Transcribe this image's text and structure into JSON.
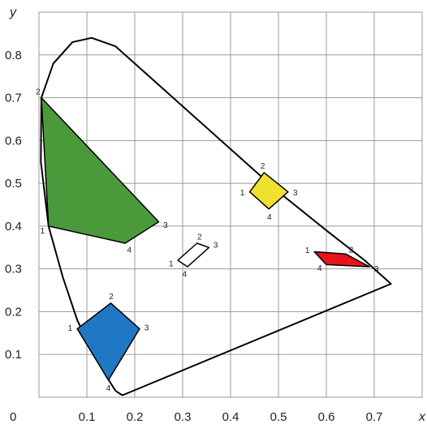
{
  "chart_data": {
    "type": "scatter",
    "title": "",
    "xlabel": "x",
    "ylabel": "y",
    "origin_label": "0",
    "xlim": [
      0,
      0.8
    ],
    "ylim": [
      0,
      0.9
    ],
    "grid": true,
    "x_ticks": [
      {
        "value": 0.1,
        "label": "0.1"
      },
      {
        "value": 0.2,
        "label": "0.2"
      },
      {
        "value": 0.3,
        "label": "0.3"
      },
      {
        "value": 0.4,
        "label": "0.4"
      },
      {
        "value": 0.5,
        "label": "0.5"
      },
      {
        "value": 0.6,
        "label": "0.6"
      },
      {
        "value": 0.7,
        "label": "0.7"
      }
    ],
    "y_ticks": [
      {
        "value": 0.1,
        "label": "0.1"
      },
      {
        "value": 0.2,
        "label": "0.2"
      },
      {
        "value": 0.3,
        "label": "0.3"
      },
      {
        "value": 0.4,
        "label": "0.4"
      },
      {
        "value": 0.5,
        "label": "0.5"
      },
      {
        "value": 0.6,
        "label": "0.6"
      },
      {
        "value": 0.7,
        "label": "0.7"
      },
      {
        "value": 0.8,
        "label": "0.8"
      }
    ],
    "spectral_locus": [
      [
        0.175,
        0.005
      ],
      [
        0.172,
        0.006
      ],
      [
        0.16,
        0.015
      ],
      [
        0.14,
        0.05
      ],
      [
        0.115,
        0.1
      ],
      [
        0.08,
        0.18
      ],
      [
        0.05,
        0.28
      ],
      [
        0.02,
        0.4
      ],
      [
        0.004,
        0.55
      ],
      [
        0.005,
        0.7
      ],
      [
        0.03,
        0.78
      ],
      [
        0.07,
        0.83
      ],
      [
        0.11,
        0.84
      ],
      [
        0.16,
        0.82
      ],
      [
        0.23,
        0.75
      ],
      [
        0.3,
        0.68
      ],
      [
        0.4,
        0.58
      ],
      [
        0.5,
        0.48
      ],
      [
        0.6,
        0.39
      ],
      [
        0.68,
        0.32
      ],
      [
        0.735,
        0.265
      ]
    ],
    "regions": [
      {
        "color": "#4a9a3c",
        "vertices": [
          {
            "label": "1",
            "x": 0.02,
            "y": 0.4
          },
          {
            "label": "2",
            "x": 0.005,
            "y": 0.7
          },
          {
            "label": "3",
            "x": 0.25,
            "y": 0.41
          },
          {
            "label": "4",
            "x": 0.18,
            "y": 0.36
          }
        ]
      },
      {
        "color": "#1f78c4",
        "vertices": [
          {
            "label": "1",
            "x": 0.08,
            "y": 0.16
          },
          {
            "label": "2",
            "x": 0.15,
            "y": 0.22
          },
          {
            "label": "3",
            "x": 0.21,
            "y": 0.16
          },
          {
            "label": "4",
            "x": 0.145,
            "y": 0.04
          }
        ]
      },
      {
        "color": "#ffffff",
        "vertices": [
          {
            "label": "1",
            "x": 0.29,
            "y": 0.32
          },
          {
            "label": "2",
            "x": 0.33,
            "y": 0.36
          },
          {
            "label": "3",
            "x": 0.355,
            "y": 0.35
          },
          {
            "label": "4",
            "x": 0.31,
            "y": 0.305
          }
        ]
      },
      {
        "color": "#f0e030",
        "vertices": [
          {
            "label": "1",
            "x": 0.44,
            "y": 0.48
          },
          {
            "label": "2",
            "x": 0.47,
            "y": 0.525
          },
          {
            "label": "3",
            "x": 0.52,
            "y": 0.48
          },
          {
            "label": "4",
            "x": 0.48,
            "y": 0.44
          }
        ]
      },
      {
        "color": "#e8141c",
        "vertices": [
          {
            "label": "1",
            "x": 0.575,
            "y": 0.34
          },
          {
            "label": "2",
            "x": 0.64,
            "y": 0.335
          },
          {
            "label": "3",
            "x": 0.69,
            "y": 0.305
          },
          {
            "label": "4",
            "x": 0.6,
            "y": 0.31
          }
        ]
      }
    ]
  }
}
